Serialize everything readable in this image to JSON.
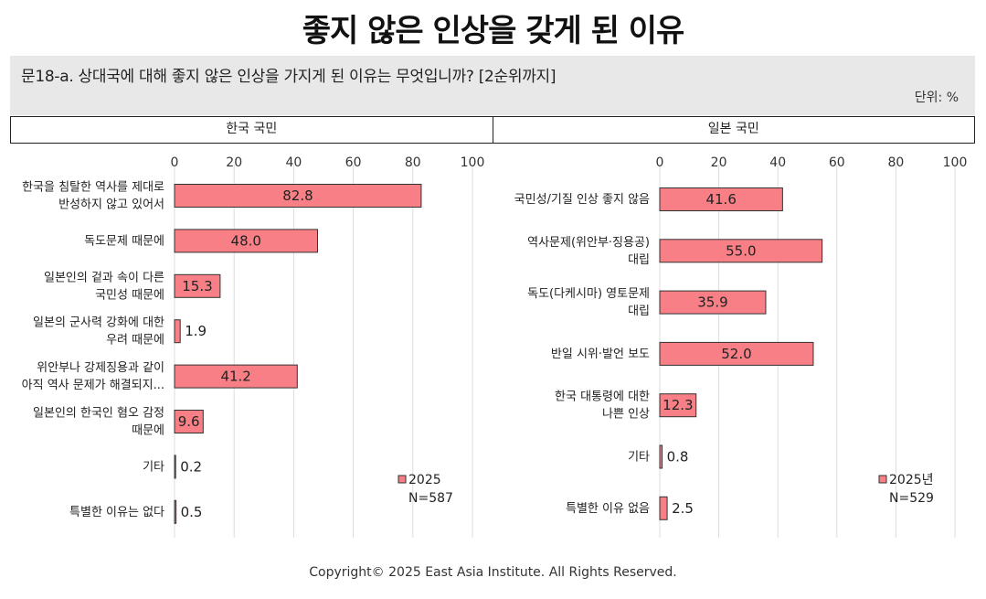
{
  "title": "좋지 않은 인상을 갖게 된 이유",
  "question": "문18-a. 상대국에 대해 좋지 않은 인상을 가지게 된 이유는 무엇입니까? [2순위까지]",
  "unit": "단위: %",
  "footer": "Copyright© 2025 East Asia Institute. All Rights Reserved.",
  "colors": {
    "bar": "#f77f85",
    "bar_border": "#333333",
    "grid": "#dddddd"
  },
  "chart_data": [
    {
      "type": "bar",
      "orientation": "horizontal",
      "panel_title": "한국 국민",
      "xlim": [
        0,
        100
      ],
      "ticks": [
        0,
        20,
        40,
        60,
        80,
        100
      ],
      "grid": true,
      "legend": {
        "label": "2025",
        "note": "N=587",
        "placement": "bottom-right"
      },
      "categories": [
        [
          "한국을 침탈한 역사를 제대로",
          "반성하지 않고 있어서"
        ],
        [
          "독도문제 때문에"
        ],
        [
          "일본인의 겉과 속이 다른",
          "국민성 때문에"
        ],
        [
          "일본의 군사력 강화에 대한",
          "우려 때문에"
        ],
        [
          "위안부나 강제징용과 같이",
          "아직 역사 문제가 해결되지..."
        ],
        [
          "일본인의 한국인 혐오 감정",
          "때문에"
        ],
        [
          "기타"
        ],
        [
          "특별한 이유는 없다"
        ]
      ],
      "values": [
        82.8,
        48.0,
        15.3,
        1.9,
        41.2,
        9.6,
        0.2,
        0.5
      ],
      "labels": [
        "82.8",
        "48.0",
        "15.3",
        "1.9",
        "41.2",
        "9.6",
        "0.2",
        "0.5"
      ]
    },
    {
      "type": "bar",
      "orientation": "horizontal",
      "panel_title": "일본 국민",
      "xlim": [
        0,
        100
      ],
      "ticks": [
        0,
        20,
        40,
        60,
        80,
        100
      ],
      "grid": true,
      "legend": {
        "label": "2025년",
        "note": "N=529",
        "placement": "bottom-right"
      },
      "categories": [
        [
          "국민성/기질 인상 좋지 않음"
        ],
        [
          "역사문제(위안부·징용공)",
          "대립"
        ],
        [
          "독도(다케시마) 영토문제",
          "대립"
        ],
        [
          "반일 시위·발언 보도"
        ],
        [
          "한국 대통령에 대한",
          "나쁜 인상"
        ],
        [
          "기타"
        ],
        [
          "특별한 이유 없음"
        ]
      ],
      "values": [
        41.6,
        55.0,
        35.9,
        52.0,
        12.3,
        0.8,
        2.5
      ],
      "labels": [
        "41.6",
        "55.0",
        "35.9",
        "52.0",
        "12.3",
        "0.8",
        "2.5"
      ]
    }
  ]
}
